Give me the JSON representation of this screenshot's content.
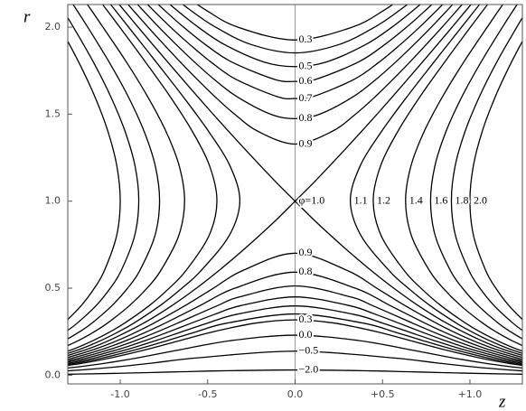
{
  "chart_data": {
    "type": "line",
    "x_label": "z",
    "y_label": "r",
    "xlim": [
      -1.3,
      1.3
    ],
    "ylim": [
      -0.05,
      2.13
    ],
    "xticks": [
      {
        "value": -1.0,
        "label": "-1.0"
      },
      {
        "value": -0.5,
        "label": "-0.5"
      },
      {
        "value": 0,
        "label": "0.0"
      },
      {
        "value": 0.5,
        "label": "+0.5"
      },
      {
        "value": 1.0,
        "label": "+1.0"
      }
    ],
    "yticks": [
      {
        "value": 0,
        "label": "0.0"
      },
      {
        "value": 0.5,
        "label": "0.5"
      },
      {
        "value": 1.0,
        "label": "1.0"
      },
      {
        "value": 1.5,
        "label": "1.5"
      },
      {
        "value": 2.0,
        "label": "2.0"
      }
    ],
    "color": "#000000",
    "series": [
      {
        "name": "0.9",
        "x": [
          -1.016,
          -0.929,
          -0.841,
          -0.75,
          -0.657,
          -0.56,
          -0.458,
          -0.346,
          -0.21,
          0,
          0.21,
          0.346,
          0.458,
          0.56,
          0.657,
          0.75,
          0.841,
          0.929,
          1.016
        ],
        "values": [
          2.2,
          2.1,
          2.0,
          1.9,
          1.8,
          1.7,
          1.6,
          1.5,
          1.4,
          1.328,
          1.4,
          1.5,
          1.6,
          1.7,
          1.8,
          1.9,
          2.0,
          2.1,
          2.2
        ]
      },
      {
        "name": "0.8",
        "x": [
          -0.965,
          -0.873,
          -0.779,
          -0.68,
          -0.576,
          -0.463,
          -0.332,
          -0.141,
          0,
          0.141,
          0.332,
          0.463,
          0.576,
          0.68,
          0.779,
          0.873,
          0.965
        ],
        "values": [
          2.2,
          2.1,
          2.0,
          1.9,
          1.8,
          1.7,
          1.6,
          1.5,
          1.474,
          1.5,
          1.6,
          1.7,
          1.8,
          1.9,
          2.0,
          2.1,
          2.2
        ]
      },
      {
        "name": "0.7",
        "x": [
          -0.912,
          -0.814,
          -0.712,
          -0.602,
          -0.482,
          -0.338,
          -0.1,
          0,
          0.1,
          0.338,
          0.482,
          0.602,
          0.712,
          0.814,
          0.912
        ],
        "values": [
          2.2,
          2.1,
          2.0,
          1.9,
          1.8,
          1.7,
          1.6,
          1.59,
          1.6,
          1.7,
          1.8,
          1.9,
          2.0,
          2.1,
          2.2
        ]
      },
      {
        "name": "0.6",
        "x": [
          -0.856,
          -0.75,
          -0.638,
          -0.513,
          -0.363,
          -0.118,
          0,
          0.118,
          0.363,
          0.513,
          0.638,
          0.75,
          0.856
        ],
        "values": [
          2.2,
          2.1,
          2.0,
          1.9,
          1.8,
          1.7,
          1.688,
          1.7,
          1.8,
          1.9,
          2.0,
          2.1,
          2.2
        ]
      },
      {
        "name": "0.5",
        "x": [
          -0.795,
          -0.68,
          -0.554,
          -0.404,
          -0.179,
          0,
          0.179,
          0.404,
          0.554,
          0.68,
          0.795
        ],
        "values": [
          2.2,
          2.1,
          2.0,
          1.9,
          1.8,
          1.773,
          1.8,
          1.9,
          2.0,
          2.1,
          2.2
        ]
      },
      {
        "name": null,
        "x": [
          -0.729,
          -0.602,
          -0.455,
          -0.251,
          0,
          0.251,
          0.455,
          0.602,
          0.729
        ],
        "values": [
          2.2,
          2.1,
          2.0,
          1.9,
          1.852,
          1.9,
          2.0,
          2.1,
          2.2
        ]
      },
      {
        "name": "0.3",
        "x": [
          -0.657,
          -0.513,
          -0.327,
          0,
          0.327,
          0.513,
          0.657
        ],
        "values": [
          2.2,
          2.1,
          2.0,
          1.926,
          2.0,
          2.1,
          2.2
        ]
      },
      {
        "name": "φ=1.0",
        "x": [
          -1.064,
          -0.981,
          -0.898,
          -0.814,
          -0.729,
          -0.643,
          -0.557,
          -0.469,
          -0.379,
          -0.288,
          -0.195,
          -0.1,
          0,
          0.1,
          0.207,
          0.319,
          0.437,
          0.564,
          0.704,
          0.865,
          1.063,
          1.187,
          1.345
        ],
        "values": [
          2.2,
          2.1,
          2.0,
          1.9,
          1.8,
          1.7,
          1.6,
          1.5,
          1.4,
          1.3,
          1.2,
          1.1,
          1.0,
          0.9,
          0.8,
          0.7,
          0.6,
          0.5,
          0.4,
          0.3,
          0.2,
          0.15,
          0.1
        ]
      },
      {
        "name": null,
        "x": [
          1.064,
          0.981,
          0.898,
          0.814,
          0.729,
          0.643,
          0.557,
          0.469,
          0.379,
          0.288,
          0.195,
          0.1,
          0,
          -0.1,
          -0.207,
          -0.319,
          -0.437,
          -0.564,
          -0.704,
          -0.865,
          -1.063,
          -1.187,
          -1.345
        ],
        "values": [
          2.2,
          2.1,
          2.0,
          1.9,
          1.8,
          1.7,
          1.6,
          1.5,
          1.4,
          1.3,
          1.2,
          1.1,
          1.0,
          0.9,
          0.8,
          0.7,
          0.6,
          0.5,
          0.4,
          0.3,
          0.2,
          0.15,
          0.1
        ]
      },
      {
        "name": "0.9",
        "x": [
          -1.436,
          -1.307,
          -1.144,
          -1.014,
          -0.904,
          -0.806,
          -0.629,
          -0.467,
          -0.302,
          0,
          0.302,
          0.467,
          0.629,
          0.806,
          0.904,
          1.014,
          1.144,
          1.307,
          1.436
        ],
        "values": [
          0.07,
          0.1,
          0.15,
          0.2,
          0.25,
          0.3,
          0.4,
          0.5,
          0.6,
          0.701,
          0.6,
          0.5,
          0.4,
          0.3,
          0.25,
          0.2,
          0.15,
          0.1,
          0.07
        ]
      },
      {
        "name": "0.8",
        "x": [
          -1.401,
          -1.268,
          -1.099,
          -0.964,
          -0.847,
          -0.741,
          -0.544,
          -0.344,
          0,
          0.344,
          0.544,
          0.741,
          0.847,
          0.964,
          1.099,
          1.268,
          1.401
        ],
        "values": [
          0.07,
          0.1,
          0.15,
          0.2,
          0.25,
          0.3,
          0.4,
          0.5,
          0.592,
          0.5,
          0.4,
          0.3,
          0.25,
          0.2,
          0.15,
          0.1,
          0.07
        ]
      },
      {
        "name": null,
        "x": [
          -1.365,
          -1.228,
          -1.053,
          -0.91,
          -0.786,
          -0.67,
          -0.443,
          -0.316,
          0,
          0.316,
          0.443,
          0.67,
          0.786,
          0.91,
          1.053,
          1.228,
          1.365
        ],
        "values": [
          0.07,
          0.1,
          0.15,
          0.2,
          0.25,
          0.3,
          0.4,
          0.45,
          0.513,
          0.45,
          0.4,
          0.3,
          0.25,
          0.2,
          0.15,
          0.1,
          0.07
        ]
      },
      {
        "name": null,
        "x": [
          -1.327,
          -1.187,
          -1.004,
          -0.854,
          -0.72,
          -0.591,
          -0.459,
          -0.31,
          0,
          0.31,
          0.459,
          0.591,
          0.72,
          0.854,
          1.004,
          1.187,
          1.327
        ],
        "values": [
          0.07,
          0.1,
          0.15,
          0.2,
          0.25,
          0.3,
          0.35,
          0.4,
          0.45,
          0.4,
          0.35,
          0.3,
          0.25,
          0.2,
          0.15,
          0.1,
          0.07
        ]
      },
      {
        "name": null,
        "x": [
          -1.413,
          -1.289,
          -1.144,
          -0.953,
          -0.793,
          -0.647,
          -0.499,
          -0.333,
          0,
          0.333,
          0.499,
          0.647,
          0.793,
          0.953,
          1.144,
          1.289,
          1.413
        ],
        "values": [
          0.05,
          0.07,
          0.1,
          0.15,
          0.2,
          0.25,
          0.3,
          0.35,
          0.398,
          0.35,
          0.3,
          0.25,
          0.2,
          0.15,
          0.1,
          0.07,
          0.05
        ]
      },
      {
        "name": null,
        "x": [
          -1.377,
          -1.25,
          -1.099,
          -0.899,
          -0.727,
          -0.564,
          -0.386,
          0,
          0.386,
          0.564,
          0.727,
          0.899,
          1.099,
          1.25,
          1.377
        ],
        "values": [
          0.05,
          0.07,
          0.1,
          0.15,
          0.2,
          0.25,
          0.3,
          0.352,
          0.3,
          0.25,
          0.2,
          0.15,
          0.1,
          0.07,
          0.05
        ]
      },
      {
        "name": "0.3",
        "x": [
          -1.341,
          -1.209,
          -1.053,
          -0.841,
          -0.655,
          -0.467,
          -0.221,
          0,
          0.221,
          0.467,
          0.655,
          0.841,
          1.053,
          1.209,
          1.341
        ],
        "values": [
          0.05,
          0.07,
          0.1,
          0.15,
          0.2,
          0.25,
          0.3,
          0.318,
          0.3,
          0.25,
          0.2,
          0.15,
          0.1,
          0.07,
          0.05
        ]
      },
      {
        "name": "0.0",
        "x": [
          -1.361,
          -1.224,
          -1.078,
          -0.899,
          -0.639,
          -0.359,
          0,
          0.359,
          0.639,
          0.899,
          1.078,
          1.224,
          1.361
        ],
        "values": [
          0.035,
          0.05,
          0.07,
          0.1,
          0.15,
          0.2,
          0.23,
          0.2,
          0.15,
          0.1,
          0.07,
          0.05,
          0.035
        ]
      },
      {
        "name": "−0.5",
        "x": [
          -1.383,
          -1.3,
          -1.163,
          -0.998,
          -0.814,
          -0.555,
          0,
          0.555,
          0.814,
          0.998,
          1.163,
          1.3,
          1.383
        ],
        "values": [
          0.02,
          0.025,
          0.035,
          0.05,
          0.07,
          0.1,
          0.138,
          0.1,
          0.07,
          0.05,
          0.035,
          0.025,
          0.02
        ]
      },
      {
        "name": "−2.0",
        "x": [
          -1.341,
          -1.209,
          -1.051,
          -0.837,
          -0.642,
          -0.435,
          0,
          0.435,
          0.642,
          0.837,
          1.051,
          1.209,
          1.341
        ],
        "values": [
          0.005,
          0.007,
          0.01,
          0.015,
          0.02,
          0.025,
          0.0302,
          0.025,
          0.02,
          0.015,
          0.01,
          0.007,
          0.005
        ]
      },
      {
        "name": "1.1",
        "x": [
          1.11,
          1.031,
          0.952,
          0.795,
          0.64,
          0.494,
          0.371,
          0.316,
          0.378,
          0.539,
          0.647,
          0.772,
          0.921,
          1.009,
          1.109,
          1.228,
          1.381
        ],
        "values": [
          2.2,
          2.1,
          2.0,
          1.8,
          1.6,
          1.4,
          1.2,
          1.0,
          0.8,
          0.6,
          0.5,
          0.4,
          0.3,
          0.25,
          0.2,
          0.15,
          0.1
        ]
      },
      {
        "name": "1.2",
        "x": [
          1.154,
          1.078,
          1.003,
          0.856,
          0.714,
          0.587,
          0.488,
          0.447,
          0.493,
          0.625,
          0.72,
          0.834,
          0.974,
          1.057,
          1.153,
          1.268,
          1.417
        ],
        "values": [
          2.2,
          2.1,
          2.0,
          1.8,
          1.6,
          1.4,
          1.2,
          1.0,
          0.8,
          0.6,
          0.5,
          0.4,
          0.3,
          0.25,
          0.2,
          0.15,
          0.1
        ]
      },
      {
        "name": "1.4",
        "x": [
          1.238,
          1.167,
          1.099,
          0.965,
          0.843,
          0.738,
          0.662,
          0.632,
          0.666,
          0.769,
          0.847,
          0.947,
          1.072,
          1.148,
          1.237,
          1.345
        ],
        "values": [
          2.2,
          2.1,
          2.0,
          1.8,
          1.6,
          1.4,
          1.2,
          1.0,
          0.8,
          0.6,
          0.5,
          0.4,
          0.3,
          0.25,
          0.2,
          0.15
        ]
      },
      {
        "name": "1.6",
        "x": [
          1.316,
          1.25,
          1.186,
          1.064,
          0.954,
          0.863,
          0.799,
          0.775,
          0.802,
          0.889,
          0.958,
          1.047,
          1.161,
          1.232,
          1.315
        ],
        "values": [
          2.2,
          2.1,
          2.0,
          1.8,
          1.6,
          1.4,
          1.2,
          1.0,
          0.8,
          0.6,
          0.5,
          0.4,
          0.3,
          0.25,
          0.2
        ]
      },
      {
        "name": "1.8",
        "x": [
          1.39,
          1.328,
          1.268,
          1.154,
          1.054,
          0.972,
          0.915,
          0.894,
          0.918,
          0.995,
          1.057,
          1.138,
          1.245,
          1.311,
          1.389
        ],
        "values": [
          2.2,
          2.1,
          2.0,
          1.8,
          1.6,
          1.4,
          1.2,
          1.0,
          0.8,
          0.6,
          0.5,
          0.4,
          0.3,
          0.25,
          0.2
        ]
      },
      {
        "name": "2.0",
        "x": [
          1.46,
          1.401,
          1.344,
          1.238,
          1.145,
          1.07,
          1.019,
          1.0,
          1.021,
          1.091,
          1.148,
          1.223,
          1.322,
          1.385
        ],
        "values": [
          2.2,
          2.1,
          2.0,
          1.8,
          1.6,
          1.4,
          1.2,
          1.0,
          0.8,
          0.6,
          0.5,
          0.4,
          0.3,
          0.25
        ]
      },
      {
        "name": null,
        "x": [
          -1.11,
          -1.031,
          -0.952,
          -0.795,
          -0.64,
          -0.494,
          -0.371,
          -0.316,
          -0.378,
          -0.539,
          -0.647,
          -0.772,
          -0.921,
          -1.009,
          -1.109,
          -1.228,
          -1.381
        ],
        "values": [
          2.2,
          2.1,
          2.0,
          1.8,
          1.6,
          1.4,
          1.2,
          1.0,
          0.8,
          0.6,
          0.5,
          0.4,
          0.3,
          0.25,
          0.2,
          0.15,
          0.1
        ]
      },
      {
        "name": null,
        "x": [
          -1.154,
          -1.078,
          -1.003,
          -0.856,
          -0.714,
          -0.587,
          -0.488,
          -0.447,
          -0.493,
          -0.625,
          -0.72,
          -0.834,
          -0.974,
          -1.057,
          -1.153,
          -1.268,
          -1.417
        ],
        "values": [
          2.2,
          2.1,
          2.0,
          1.8,
          1.6,
          1.4,
          1.2,
          1.0,
          0.8,
          0.6,
          0.5,
          0.4,
          0.3,
          0.25,
          0.2,
          0.15,
          0.1
        ]
      },
      {
        "name": null,
        "x": [
          -1.238,
          -1.167,
          -1.099,
          -0.965,
          -0.843,
          -0.738,
          -0.662,
          -0.632,
          -0.666,
          -0.769,
          -0.847,
          -0.947,
          -1.072,
          -1.148,
          -1.237,
          -1.345
        ],
        "values": [
          2.2,
          2.1,
          2.0,
          1.8,
          1.6,
          1.4,
          1.2,
          1.0,
          0.8,
          0.6,
          0.5,
          0.4,
          0.3,
          0.25,
          0.2,
          0.15
        ]
      },
      {
        "name": null,
        "x": [
          -1.316,
          -1.25,
          -1.186,
          -1.064,
          -0.954,
          -0.863,
          -0.799,
          -0.775,
          -0.802,
          -0.889,
          -0.958,
          -1.047,
          -1.161,
          -1.232,
          -1.315
        ],
        "values": [
          2.2,
          2.1,
          2.0,
          1.8,
          1.6,
          1.4,
          1.2,
          1.0,
          0.8,
          0.6,
          0.5,
          0.4,
          0.3,
          0.25,
          0.2
        ]
      },
      {
        "name": null,
        "x": [
          -1.39,
          -1.328,
          -1.268,
          -1.154,
          -1.054,
          -0.972,
          -0.915,
          -0.894,
          -0.918,
          -0.995,
          -1.057,
          -1.138,
          -1.245,
          -1.311,
          -1.389
        ],
        "values": [
          2.2,
          2.1,
          2.0,
          1.8,
          1.6,
          1.4,
          1.2,
          1.0,
          0.8,
          0.6,
          0.5,
          0.4,
          0.3,
          0.25,
          0.2
        ]
      },
      {
        "name": null,
        "x": [
          -1.46,
          -1.401,
          -1.344,
          -1.238,
          -1.145,
          -1.07,
          -1.019,
          -1.0,
          -1.021,
          -1.091,
          -1.148,
          -1.223,
          -1.322,
          -1.385
        ],
        "values": [
          2.2,
          2.1,
          2.0,
          1.8,
          1.6,
          1.4,
          1.2,
          1.0,
          0.8,
          0.6,
          0.5,
          0.4,
          0.3,
          0.25
        ]
      }
    ]
  }
}
